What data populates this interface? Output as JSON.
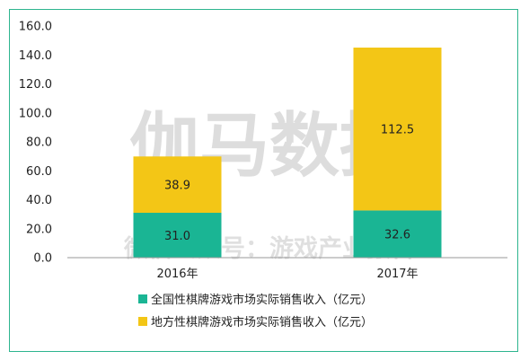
{
  "watermark": {
    "main": "伽马数据",
    "sub": "微信公众号：游戏产业报告"
  },
  "colors": {
    "border": "#2db58f",
    "series1": "#1ab594",
    "series2": "#f3c616"
  },
  "chart_data": {
    "type": "bar",
    "stacked": true,
    "categories": [
      "2016年",
      "2017年"
    ],
    "series": [
      {
        "name": "全国性棋牌游戏市场实际销售收入（亿元）",
        "values": [
          31.0,
          32.6
        ],
        "labels": [
          "31.0",
          "32.6"
        ]
      },
      {
        "name": "地方性棋牌游戏市场实际销售收入（亿元）",
        "values": [
          38.9,
          112.5
        ],
        "labels": [
          "38.9",
          "112.5"
        ]
      }
    ],
    "yticks": [
      "0.0",
      "20.0",
      "40.0",
      "60.0",
      "80.0",
      "100.0",
      "120.0",
      "140.0",
      "160.0"
    ],
    "ylim": [
      0,
      160
    ],
    "grid": false,
    "legend_position": "bottom"
  }
}
